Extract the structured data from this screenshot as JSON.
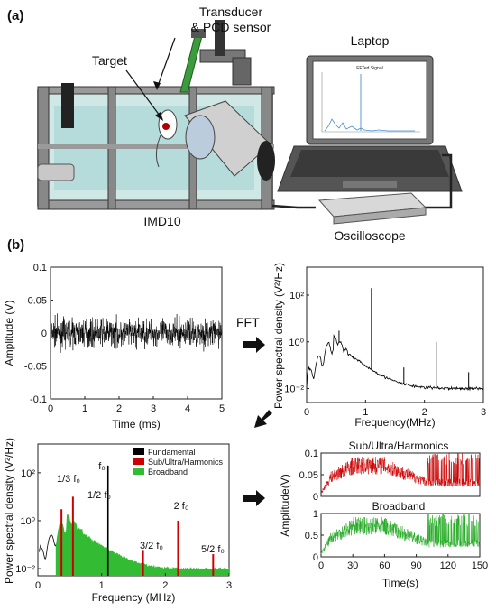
{
  "panel_a": {
    "label": "(a)",
    "labels": {
      "transducer_line1": "Transducer",
      "transducer_line2": "& PCD sensor",
      "target": "Target",
      "laptop": "Laptop",
      "imd10": "IMD10",
      "oscilloscope": "Oscilloscope",
      "screen_title": "FFTed Signal"
    }
  },
  "panel_b": {
    "label": "(b)",
    "fft_label": "FFT"
  },
  "chart_data": [
    {
      "id": "time_signal",
      "type": "line",
      "xlabel": "Time (ms)",
      "ylabel": "Amplitude (V)",
      "xlim": [
        0,
        5
      ],
      "ylim": [
        -0.1,
        0.1
      ],
      "xticks": [
        "0",
        "1",
        "2",
        "3",
        "4",
        "5"
      ],
      "yticks": [
        "-0.1",
        "-0.05",
        "0",
        "0.05",
        "0.1"
      ],
      "color": "#000000"
    },
    {
      "id": "psd_raw",
      "type": "line",
      "xlabel": "Frequency(MHz)",
      "ylabel": "Power spectral density (V²/Hz)",
      "xlim": [
        0,
        3
      ],
      "yscale": "log",
      "xticks": [
        "0",
        "1",
        "2",
        "3"
      ],
      "yticks": [
        "10⁻²",
        "10⁰",
        "10²"
      ],
      "peaks": [
        {
          "x": 0.55,
          "y": 3
        },
        {
          "x": 1.1,
          "y": 200
        },
        {
          "x": 1.65,
          "y": 0.08
        },
        {
          "x": 2.2,
          "y": 1
        },
        {
          "x": 2.75,
          "y": 0.05
        }
      ],
      "color": "#000000"
    },
    {
      "id": "psd_classified",
      "type": "area",
      "xlabel": "Frequency (MHz)",
      "ylabel": "Power spectral density (V²/Hz)",
      "xlim": [
        0,
        3
      ],
      "yscale": "log",
      "xticks": [
        "0",
        "1",
        "2",
        "3"
      ],
      "yticks": [
        "10⁻²",
        "10⁰",
        "10²"
      ],
      "legend": {
        "placement": "top-right",
        "entries": [
          {
            "name": "Fundamental",
            "color": "#000000"
          },
          {
            "name": "Sub/Ultra/Harmonics",
            "color": "#cc0000"
          },
          {
            "name": "Broadband",
            "color": "#33bb33"
          }
        ]
      },
      "annotations": [
        {
          "label": "f₀",
          "x": 1.1,
          "kind": "fundamental"
        },
        {
          "label": "1/3 f₀",
          "x": 0.37,
          "kind": "harmonic"
        },
        {
          "label": "1/2 f₀",
          "x": 0.55,
          "kind": "harmonic"
        },
        {
          "label": "3/2 f₀",
          "x": 1.65,
          "kind": "harmonic"
        },
        {
          "label": "2 f₀",
          "x": 2.2,
          "kind": "harmonic"
        },
        {
          "label": "5/2 f₀",
          "x": 2.75,
          "kind": "harmonic"
        }
      ]
    },
    {
      "id": "harmonics_time",
      "type": "line",
      "title": "Sub/Ultra/Harmonics",
      "xlim": [
        0,
        150
      ],
      "ylim": [
        0,
        0.1
      ],
      "yticks": [
        "0",
        "0.05",
        "0.1"
      ],
      "color": "#cc0000"
    },
    {
      "id": "broadband_time",
      "type": "line",
      "title": "Broadband",
      "xlabel": "Time(s)",
      "xlim": [
        0,
        150
      ],
      "ylim": [
        0,
        1
      ],
      "xticks": [
        "0",
        "30",
        "60",
        "90",
        "120",
        "150"
      ],
      "yticks": [
        "0",
        "0.5",
        "1"
      ],
      "color": "#22aa22"
    }
  ],
  "shared_ylabel_right": "Amplitude(V)"
}
